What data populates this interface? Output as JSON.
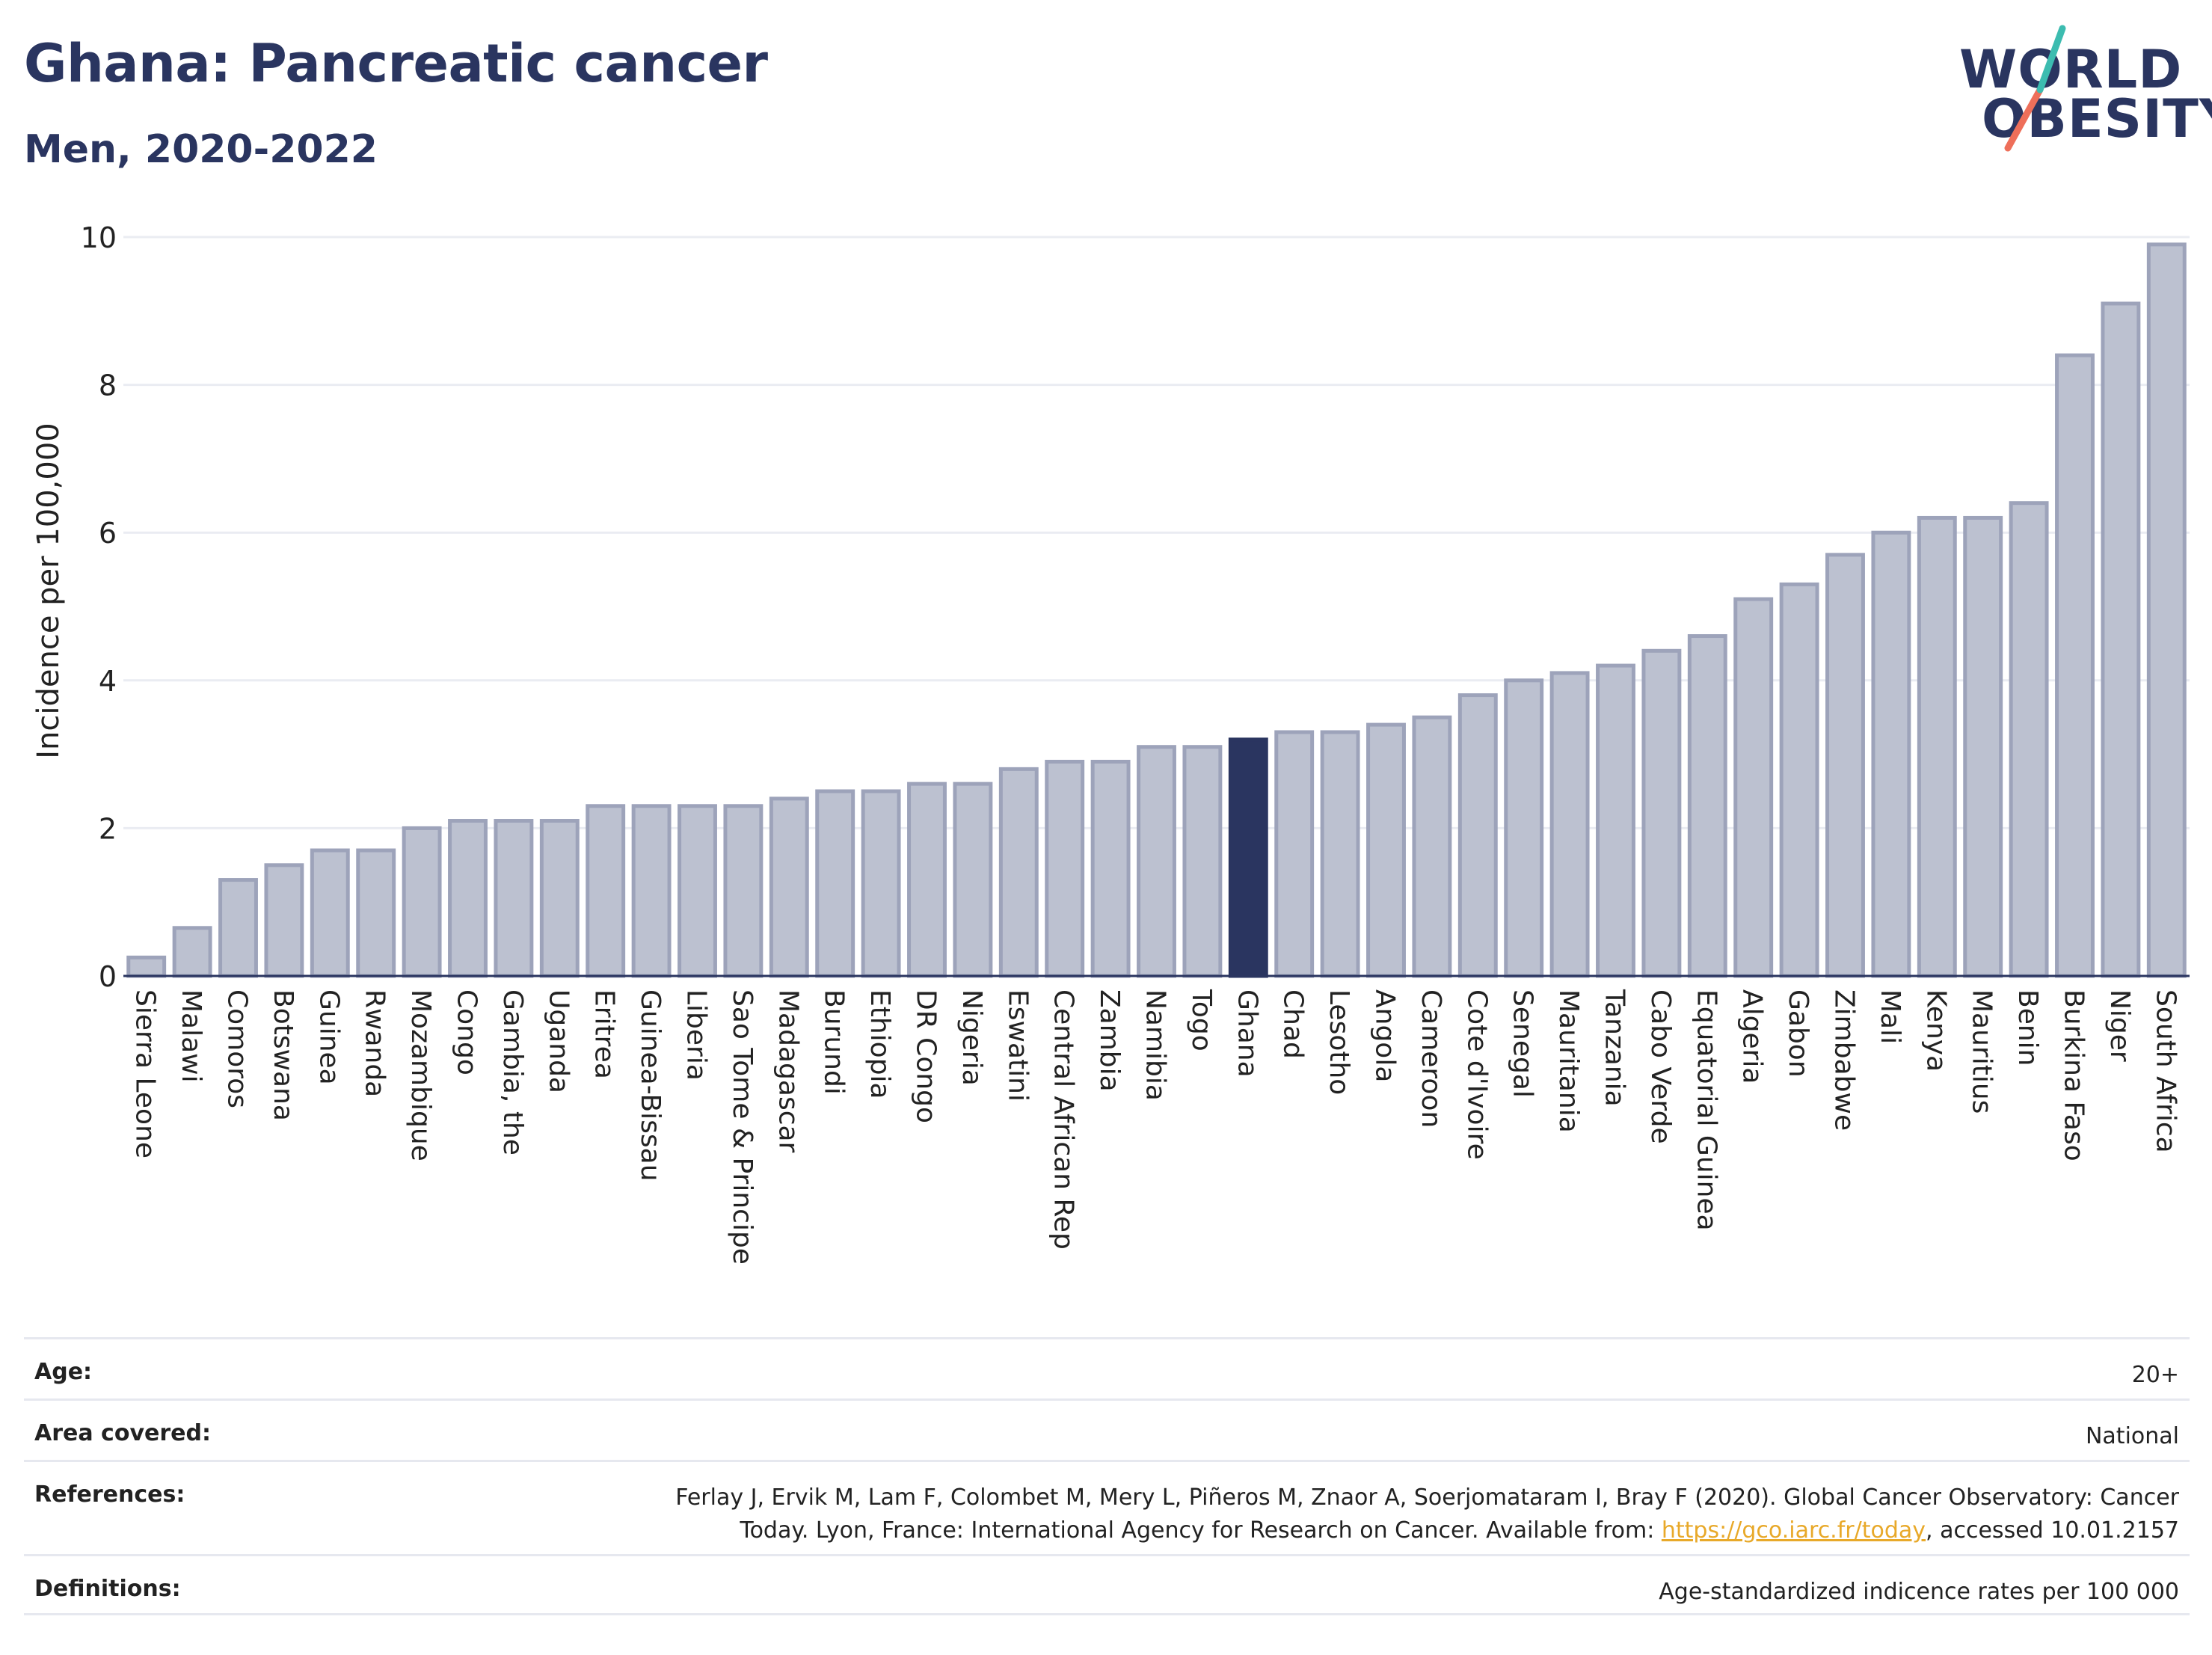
{
  "header": {
    "title": "Ghana: Pancreatic cancer",
    "subtitle": "Men, 2020-2022"
  },
  "logo": {
    "line1": "WORLD",
    "line2": "OBESITY"
  },
  "colors": {
    "bar_default": "#bcc1d0",
    "bar_default_stroke": "#9da3ba",
    "bar_highlight": "#2a3560",
    "text": "#2a3560",
    "grid": "#eaecf2",
    "link": "#e8a92a"
  },
  "chart_data": {
    "type": "bar",
    "ylabel": "Incidence per 100,000",
    "xlabel": "",
    "ylim": [
      0,
      10
    ],
    "yticks": [
      "0",
      "2",
      "4",
      "6",
      "8",
      "10"
    ],
    "highlight": "Ghana",
    "grid": true,
    "categories": [
      "Sierra Leone",
      "Malawi",
      "Comoros",
      "Botswana",
      "Guinea",
      "Rwanda",
      "Mozambique",
      "Congo",
      "Gambia, the",
      "Uganda",
      "Eritrea",
      "Guinea-Bissau",
      "Liberia",
      "Sao Tome & Principe",
      "Madagascar",
      "Burundi",
      "Ethiopia",
      "DR Congo",
      "Nigeria",
      "Eswatini",
      "Central African Rep",
      "Zambia",
      "Namibia",
      "Togo",
      "Ghana",
      "Chad",
      "Lesotho",
      "Angola",
      "Cameroon",
      "Cote d'Ivoire",
      "Senegal",
      "Mauritania",
      "Tanzania",
      "Cabo Verde",
      "Equatorial Guinea",
      "Algeria",
      "Gabon",
      "Zimbabwe",
      "Mali",
      "Kenya",
      "Mauritius",
      "Benin",
      "Burkina Faso",
      "Niger",
      "South Africa"
    ],
    "values": [
      0.25,
      0.65,
      1.3,
      1.5,
      1.7,
      1.7,
      2.0,
      2.1,
      2.1,
      2.1,
      2.3,
      2.3,
      2.3,
      2.3,
      2.4,
      2.5,
      2.5,
      2.6,
      2.6,
      2.8,
      2.9,
      2.9,
      3.1,
      3.1,
      3.2,
      3.3,
      3.3,
      3.4,
      3.5,
      3.8,
      4.0,
      4.1,
      4.2,
      4.4,
      4.6,
      5.1,
      5.3,
      5.7,
      6.0,
      6.2,
      6.2,
      6.4,
      8.4,
      9.1,
      9.9
    ]
  },
  "meta": {
    "age_label": "Age:",
    "age_value": "20+",
    "area_label": "Area covered:",
    "area_value": "National",
    "references_label": "References:",
    "references_line1": "Ferlay J, Ervik M, Lam F, Colombet M, Mery L, Piñeros M, Znaor A, Soerjomataram I, Bray F (2020). Global Cancer Observatory: Cancer",
    "references_line2_prefix": "Today. Lyon, France: International Agency for Research on Cancer. Available from: ",
    "references_link": "https://gco.iarc.fr/today",
    "references_line2_suffix": ", accessed 10.01.2157",
    "definitions_label": "Definitions:",
    "definitions_value": "Age-standardized indicence rates per 100 000"
  }
}
